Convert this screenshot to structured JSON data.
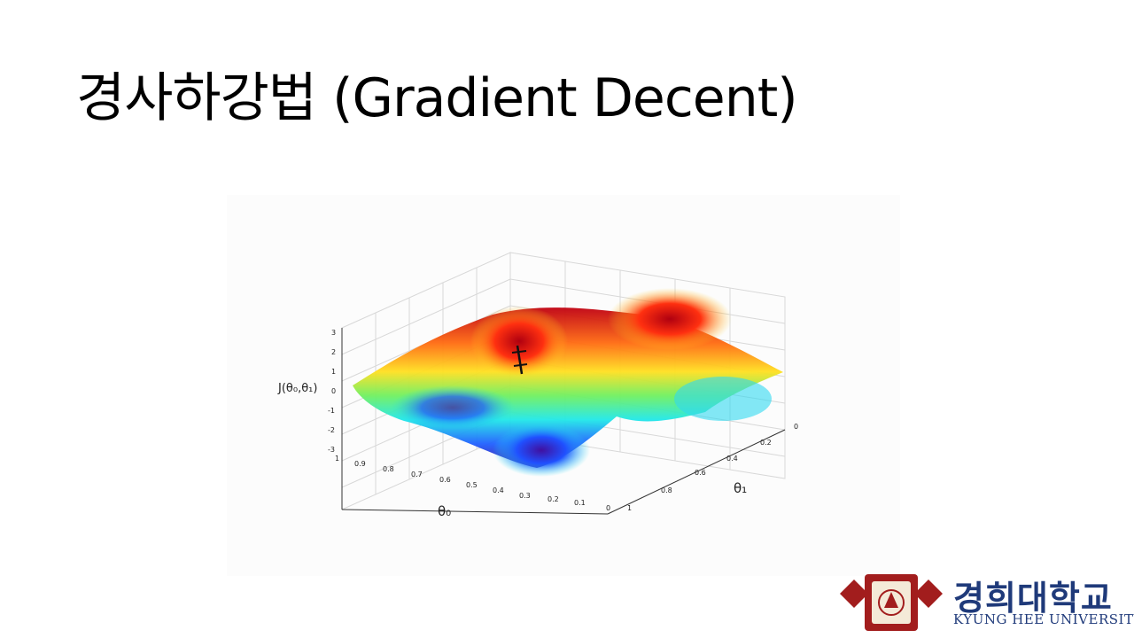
{
  "slide": {
    "title": "경사하강법 (Gradient Decent)"
  },
  "figure": {
    "z_axis_label": "J(θ₀,θ₁)",
    "x_axis_label": "θ₀",
    "y_axis_label": "θ₁",
    "z_ticks": [
      "3",
      "2",
      "1",
      "0",
      "-1",
      "-2",
      "-3"
    ],
    "x_ticks": [
      "1",
      "0.9",
      "0.8",
      "0.7",
      "0.6",
      "0.5",
      "0.4",
      "0.3",
      "0.2",
      "0.1",
      "0"
    ],
    "y_ticks": [
      "1",
      "0.8",
      "0.6",
      "0.4",
      "0.2",
      "0"
    ],
    "colors": {
      "high": "#d0000a",
      "mid": "#f5e020",
      "low": "#3a0ab0"
    }
  },
  "logo": {
    "name_ko": "경희대학교",
    "name_en": "KYUNG HEE UNIVERSITY",
    "color": "#1f3a7a",
    "emblem_color": "#a21d1d"
  }
}
